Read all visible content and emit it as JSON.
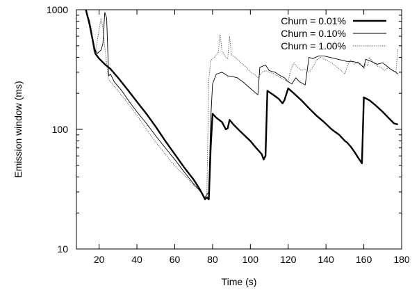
{
  "chart_data": {
    "type": "line",
    "xlabel": "Time (s)",
    "ylabel": "Emission window (ms)",
    "xlim": [
      8,
      180
    ],
    "ylim": [
      10,
      1000
    ],
    "yscale": "log",
    "x_ticks": [
      "20",
      "40",
      "60",
      "80",
      "100",
      "120",
      "140",
      "160",
      "180"
    ],
    "y_ticks": [
      "10",
      "100",
      "1000"
    ],
    "legend_position": "top-right",
    "grid": false,
    "series": [
      {
        "name": "Churn = 0.01%",
        "style": "thick",
        "points": [
          [
            13,
            1000
          ],
          [
            15,
            750
          ],
          [
            18,
            430
          ],
          [
            20,
            390
          ],
          [
            23,
            350
          ],
          [
            26,
            320
          ],
          [
            30,
            270
          ],
          [
            35,
            215
          ],
          [
            40,
            170
          ],
          [
            45,
            135
          ],
          [
            50,
            105
          ],
          [
            55,
            80
          ],
          [
            60,
            62
          ],
          [
            65,
            48
          ],
          [
            70,
            38
          ],
          [
            73,
            32
          ],
          [
            75,
            28
          ],
          [
            76,
            26
          ],
          [
            77,
            27
          ],
          [
            78,
            26
          ],
          [
            79,
            70
          ],
          [
            80,
            135
          ],
          [
            82,
            125
          ],
          [
            85,
            115
          ],
          [
            87,
            100
          ],
          [
            88,
            102
          ],
          [
            89,
            120
          ],
          [
            91,
            110
          ],
          [
            95,
            95
          ],
          [
            100,
            80
          ],
          [
            103,
            70
          ],
          [
            106,
            62
          ],
          [
            107,
            56
          ],
          [
            108,
            60
          ],
          [
            109,
            210
          ],
          [
            112,
            195
          ],
          [
            115,
            180
          ],
          [
            117,
            165
          ],
          [
            118,
            175
          ],
          [
            120,
            220
          ],
          [
            123,
            200
          ],
          [
            127,
            175
          ],
          [
            131,
            150
          ],
          [
            135,
            130
          ],
          [
            139,
            115
          ],
          [
            143,
            100
          ],
          [
            147,
            90
          ],
          [
            150,
            80
          ],
          [
            151,
            78
          ],
          [
            153,
            72
          ],
          [
            155,
            65
          ],
          [
            157,
            58
          ],
          [
            159,
            52
          ],
          [
            160,
            185
          ],
          [
            163,
            175
          ],
          [
            166,
            160
          ],
          [
            170,
            140
          ],
          [
            173,
            125
          ],
          [
            176,
            112
          ],
          [
            178,
            110
          ]
        ]
      },
      {
        "name": "Churn = 0.10%",
        "style": "thin",
        "points": [
          [
            13,
            1000
          ],
          [
            15,
            800
          ],
          [
            17,
            500
          ],
          [
            19,
            430
          ],
          [
            21,
            460
          ],
          [
            22,
            520
          ],
          [
            23,
            950
          ],
          [
            24,
            850
          ],
          [
            25,
            280
          ],
          [
            26,
            290
          ],
          [
            28,
            250
          ],
          [
            32,
            210
          ],
          [
            36,
            170
          ],
          [
            40,
            140
          ],
          [
            45,
            112
          ],
          [
            50,
            88
          ],
          [
            55,
            70
          ],
          [
            60,
            56
          ],
          [
            65,
            44
          ],
          [
            70,
            35
          ],
          [
            73,
            31
          ],
          [
            75,
            28
          ],
          [
            76,
            27
          ],
          [
            78,
            30
          ],
          [
            79,
            120
          ],
          [
            80,
            240
          ],
          [
            82,
            290
          ],
          [
            85,
            300
          ],
          [
            88,
            280
          ],
          [
            91,
            275
          ],
          [
            93,
            270
          ],
          [
            96,
            250
          ],
          [
            100,
            220
          ],
          [
            103,
            200
          ],
          [
            104,
            195
          ],
          [
            105,
            330
          ],
          [
            108,
            345
          ],
          [
            110,
            310
          ],
          [
            113,
            300
          ],
          [
            116,
            280
          ],
          [
            118,
            270
          ],
          [
            120,
            250
          ],
          [
            122,
            240
          ],
          [
            124,
            270
          ],
          [
            126,
            250
          ],
          [
            128,
            240
          ],
          [
            129,
            235
          ],
          [
            131,
            400
          ],
          [
            133,
            390
          ],
          [
            136,
            410
          ],
          [
            139,
            410
          ],
          [
            142,
            400
          ],
          [
            145,
            390
          ],
          [
            148,
            380
          ],
          [
            151,
            370
          ],
          [
            154,
            370
          ],
          [
            157,
            360
          ],
          [
            158,
            350
          ],
          [
            160,
            330
          ],
          [
            161,
            385
          ],
          [
            164,
            370
          ],
          [
            167,
            350
          ],
          [
            170,
            360
          ],
          [
            172,
            340
          ],
          [
            174,
            320
          ],
          [
            177,
            300
          ],
          [
            178,
            290
          ]
        ]
      },
      {
        "name": "Churn = 1.00%",
        "style": "dotted",
        "points": [
          [
            13,
            1000
          ],
          [
            14,
            850
          ],
          [
            16,
            700
          ],
          [
            17,
            450
          ],
          [
            18,
            440
          ],
          [
            20,
            680
          ],
          [
            21,
            850
          ],
          [
            22,
            700
          ],
          [
            23,
            480
          ],
          [
            25,
            260
          ],
          [
            27,
            240
          ],
          [
            30,
            210
          ],
          [
            34,
            175
          ],
          [
            38,
            145
          ],
          [
            42,
            118
          ],
          [
            46,
            95
          ],
          [
            50,
            78
          ],
          [
            54,
            65
          ],
          [
            58,
            54
          ],
          [
            62,
            46
          ],
          [
            66,
            40
          ],
          [
            70,
            34
          ],
          [
            73,
            31
          ],
          [
            75,
            28
          ],
          [
            76,
            27
          ],
          [
            77,
            29
          ],
          [
            78,
            260
          ],
          [
            79,
            380
          ],
          [
            81,
            400
          ],
          [
            83,
            440
          ],
          [
            84,
            620
          ],
          [
            85,
            450
          ],
          [
            87,
            400
          ],
          [
            88,
            390
          ],
          [
            89,
            600
          ],
          [
            90,
            420
          ],
          [
            92,
            400
          ],
          [
            95,
            360
          ],
          [
            98,
            330
          ],
          [
            100,
            300
          ],
          [
            102,
            290
          ],
          [
            104,
            270
          ],
          [
            106,
            300
          ],
          [
            108,
            310
          ],
          [
            110,
            300
          ],
          [
            113,
            290
          ],
          [
            116,
            270
          ],
          [
            118,
            260
          ],
          [
            120,
            250
          ],
          [
            121,
            300
          ],
          [
            123,
            360
          ],
          [
            125,
            330
          ],
          [
            127,
            310
          ],
          [
            129,
            320
          ],
          [
            131,
            300
          ],
          [
            133,
            330
          ],
          [
            135,
            380
          ],
          [
            137,
            400
          ],
          [
            140,
            380
          ],
          [
            143,
            360
          ],
          [
            145,
            340
          ],
          [
            147,
            320
          ],
          [
            149,
            300
          ],
          [
            150,
            290
          ],
          [
            151,
            330
          ],
          [
            153,
            380
          ],
          [
            155,
            350
          ],
          [
            157,
            370
          ],
          [
            159,
            340
          ],
          [
            160,
            320
          ],
          [
            161,
            350
          ],
          [
            162,
            340
          ],
          [
            163,
            400
          ],
          [
            165,
            360
          ],
          [
            167,
            340
          ],
          [
            169,
            330
          ],
          [
            170,
            320
          ],
          [
            171,
            310
          ],
          [
            173,
            330
          ],
          [
            175,
            310
          ],
          [
            177,
            300
          ],
          [
            178,
            470
          ]
        ]
      }
    ]
  }
}
